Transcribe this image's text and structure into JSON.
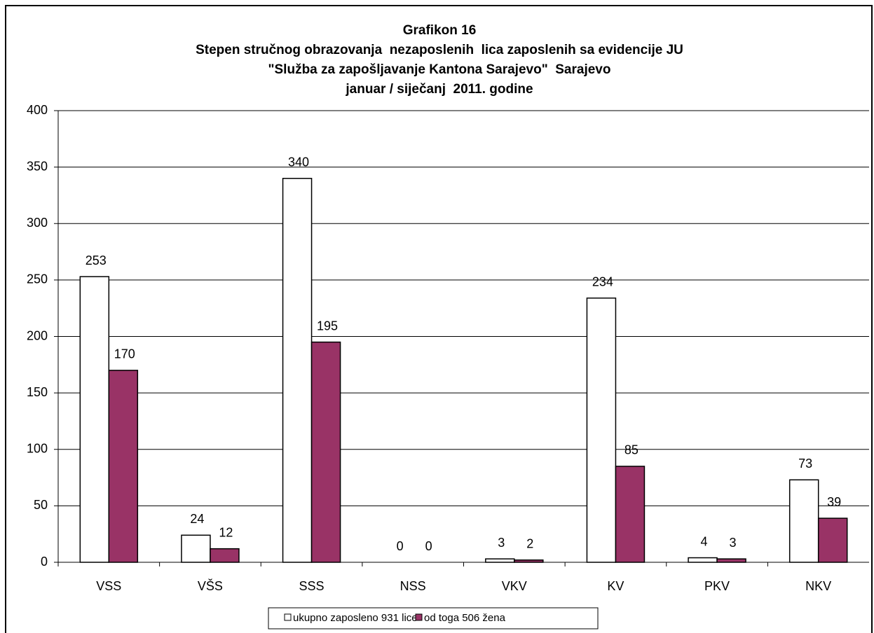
{
  "chart_data": {
    "type": "bar",
    "title": [
      "Grafikon 16",
      "Stepen stručnog obrazovanja  nezaposlenih  lica zaposlenih sa evidencije JU",
      "\"Služba za zapošljavanje Kantona Sarajevo\"  Sarajevo",
      "januar / siječanj  2011. godine"
    ],
    "categories": [
      "VSS",
      "VŠS",
      "SSS",
      "NSS",
      "VKV",
      "KV",
      "PKV",
      "NKV"
    ],
    "series": [
      {
        "name": "ukupno zaposleno 931 lice",
        "color": "#ffffff",
        "values": [
          253,
          24,
          340,
          0,
          3,
          234,
          4,
          73
        ]
      },
      {
        "name": "od toga 506 žena",
        "color": "#993366",
        "values": [
          170,
          12,
          195,
          0,
          2,
          85,
          3,
          39
        ]
      }
    ],
    "ylim": [
      0,
      400
    ],
    "yticks": [
      0,
      50,
      100,
      150,
      200,
      250,
      300,
      350,
      400
    ],
    "grid": true,
    "legend": "bottom"
  }
}
